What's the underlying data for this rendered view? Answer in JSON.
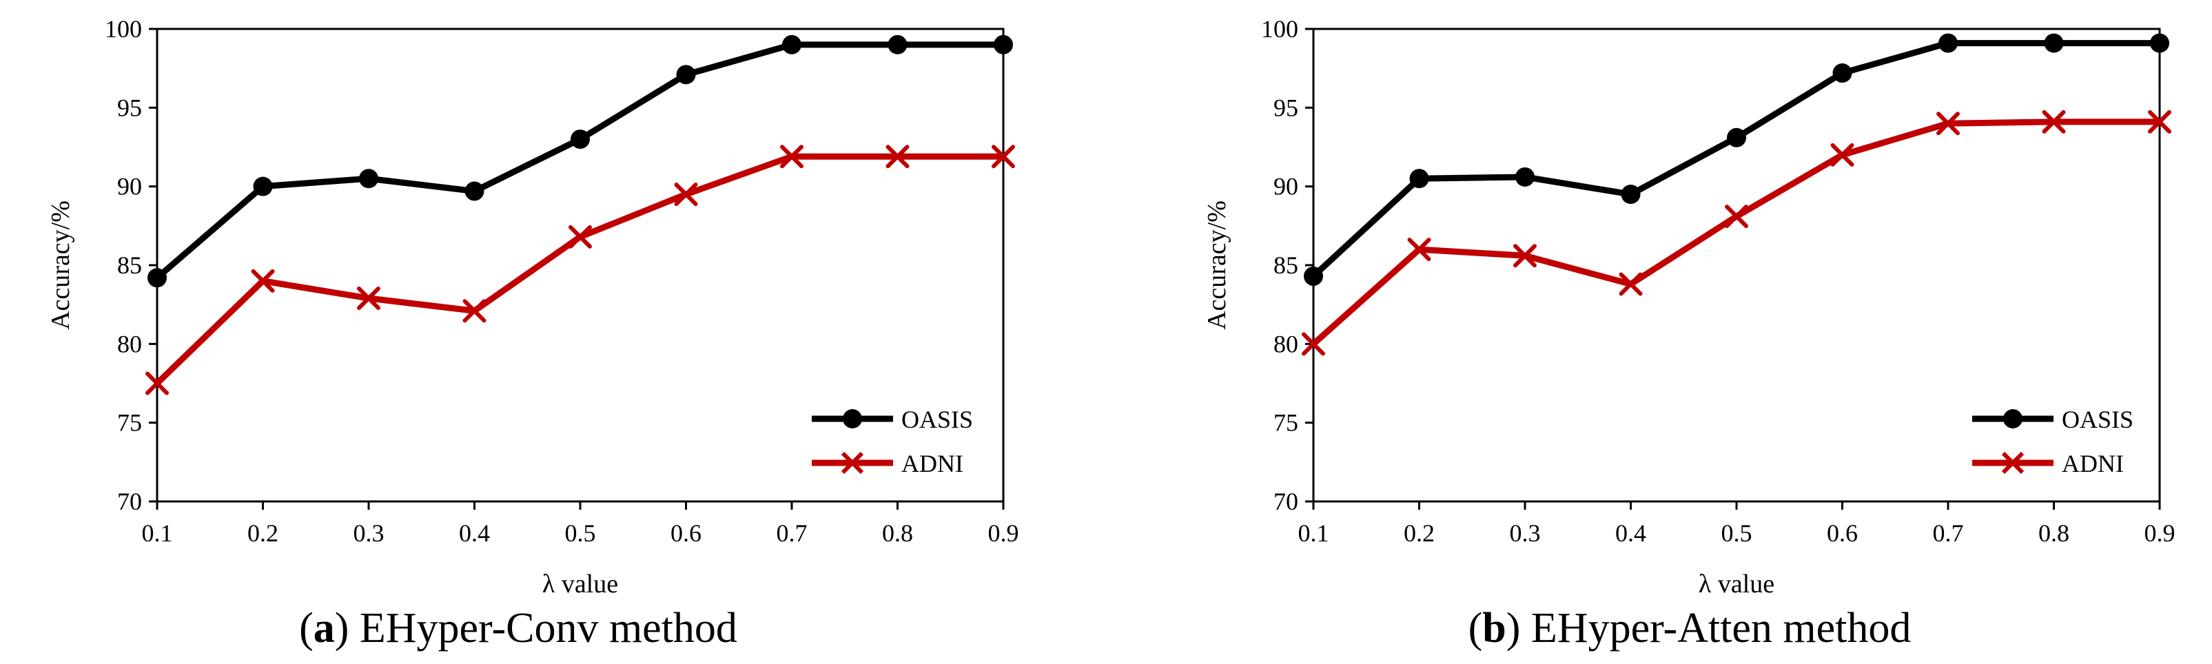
{
  "chart_data": [
    {
      "type": "line",
      "panel_tag": "a",
      "caption_open": "(",
      "caption_close": ")",
      "caption_text": " EHyper-Conv method",
      "xlabel": "λ value",
      "ylabel": "Accuracy/%",
      "categories": [
        "0.1",
        "0.2",
        "0.3",
        "0.4",
        "0.5",
        "0.6",
        "0.7",
        "0.8",
        "0.9"
      ],
      "ylim": [
        70,
        100
      ],
      "yticks": [
        70,
        75,
        80,
        85,
        90,
        95,
        100
      ],
      "grid": false,
      "legend_position": "bottom-right",
      "series": [
        {
          "name": "OASIS",
          "color": "#000000",
          "marker": "circle",
          "values": [
            84.2,
            90.0,
            90.5,
            89.7,
            93.0,
            97.1,
            99.0,
            99.0,
            99.0
          ]
        },
        {
          "name": "ADNI",
          "color": "#c00000",
          "marker": "x",
          "values": [
            77.5,
            84.0,
            82.9,
            82.1,
            86.8,
            89.5,
            91.9,
            91.9,
            91.9
          ]
        }
      ]
    },
    {
      "type": "line",
      "panel_tag": "b",
      "caption_open": "(",
      "caption_close": ")",
      "caption_text": " EHyper-Atten method",
      "xlabel": "λ value",
      "ylabel": "Accuracy/%",
      "categories": [
        "0.1",
        "0.2",
        "0.3",
        "0.4",
        "0.5",
        "0.6",
        "0.7",
        "0.8",
        "0.9"
      ],
      "ylim": [
        70,
        100
      ],
      "yticks": [
        70,
        75,
        80,
        85,
        90,
        95,
        100
      ],
      "grid": false,
      "legend_position": "bottom-right",
      "series": [
        {
          "name": "OASIS",
          "color": "#000000",
          "marker": "circle",
          "values": [
            84.3,
            90.5,
            90.6,
            89.5,
            93.1,
            97.2,
            99.1,
            99.1,
            99.1
          ]
        },
        {
          "name": "ADNI",
          "color": "#c00000",
          "marker": "x",
          "values": [
            80.0,
            86.0,
            85.6,
            83.8,
            88.1,
            92.0,
            94.0,
            94.1,
            94.1
          ]
        }
      ]
    }
  ]
}
